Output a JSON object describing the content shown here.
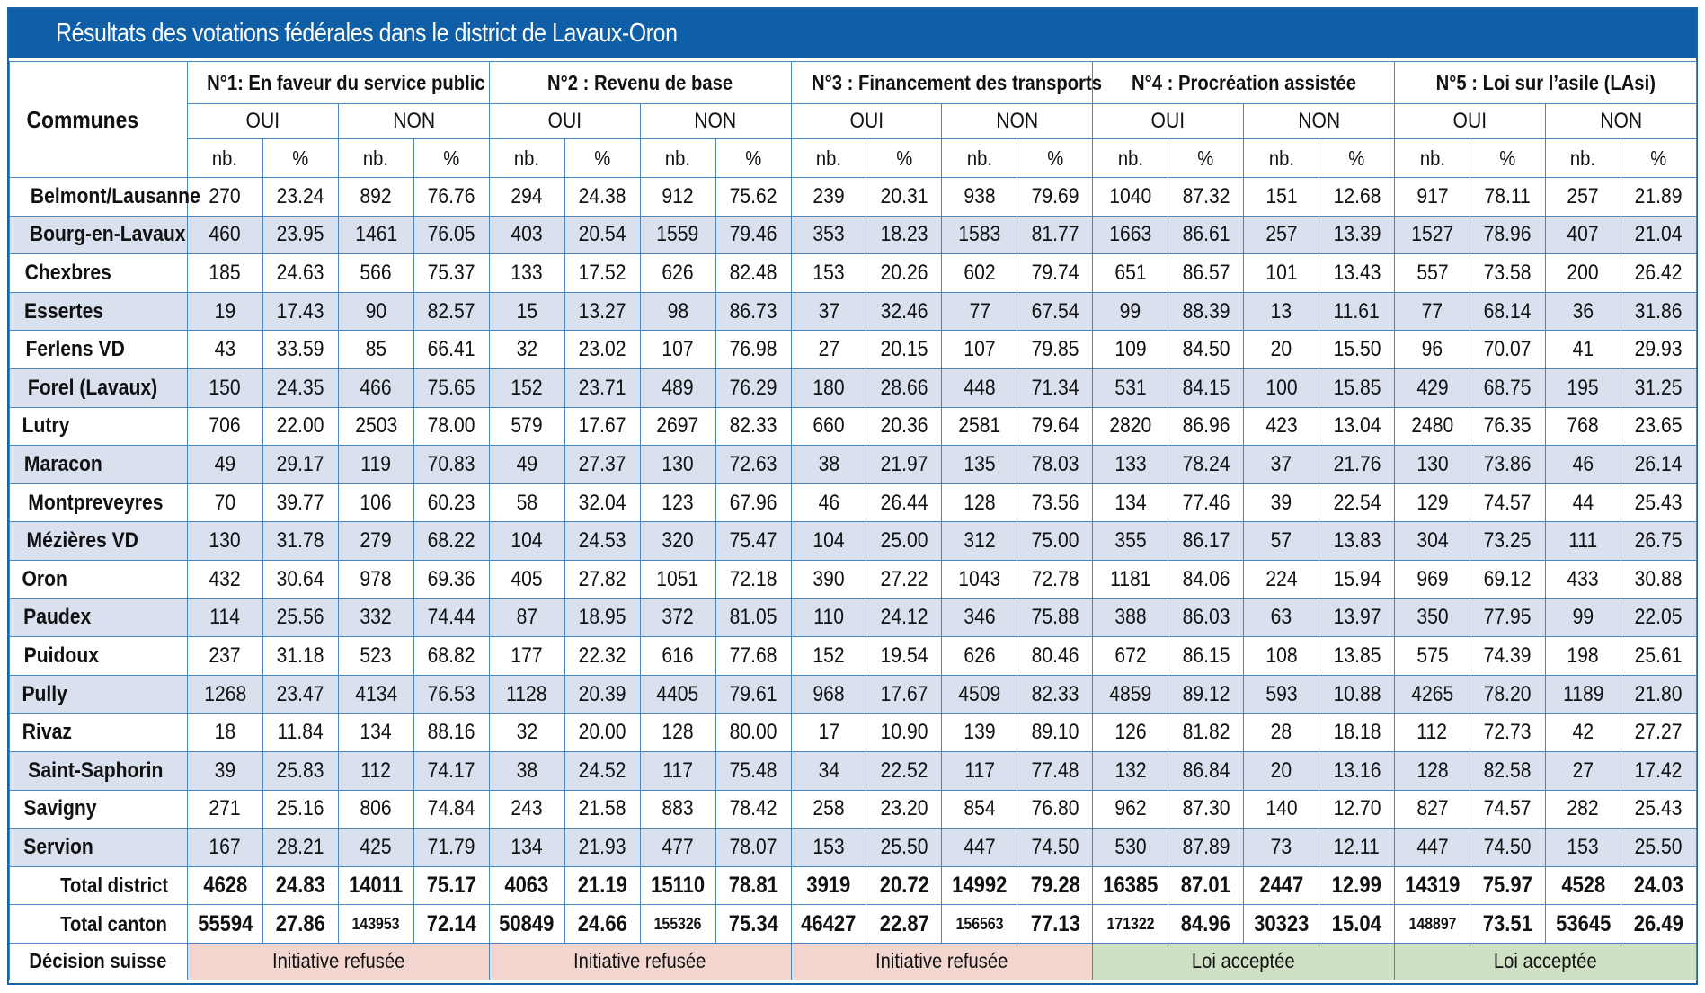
{
  "title": "Résultats des votations fédérales dans le district de Lavaux-Oron",
  "header": {
    "communes_label": "Communes",
    "votes": [
      "N°1: En faveur du service public",
      "N°2 : Revenu de base",
      "N°3 : Financement des transports",
      "N°4 : Procréation assistée",
      "N°5 : Loi sur l’asile (LAsi)"
    ],
    "oui_label": "OUI",
    "non_label": "NON",
    "nb_label": "nb.",
    "pct_label": "%"
  },
  "rows": [
    {
      "name": "Belmont/Lausanne",
      "v": [
        "270",
        "23.24",
        "892",
        "76.76",
        "294",
        "24.38",
        "912",
        "75.62",
        "239",
        "20.31",
        "938",
        "79.69",
        "1040",
        "87.32",
        "151",
        "12.68",
        "917",
        "78.11",
        "257",
        "21.89"
      ]
    },
    {
      "name": "Bourg-en-Lavaux",
      "v": [
        "460",
        "23.95",
        "1461",
        "76.05",
        "403",
        "20.54",
        "1559",
        "79.46",
        "353",
        "18.23",
        "1583",
        "81.77",
        "1663",
        "86.61",
        "257",
        "13.39",
        "1527",
        "78.96",
        "407",
        "21.04"
      ]
    },
    {
      "name": "Chexbres",
      "v": [
        "185",
        "24.63",
        "566",
        "75.37",
        "133",
        "17.52",
        "626",
        "82.48",
        "153",
        "20.26",
        "602",
        "79.74",
        "651",
        "86.57",
        "101",
        "13.43",
        "557",
        "73.58",
        "200",
        "26.42"
      ]
    },
    {
      "name": "Essertes",
      "v": [
        "19",
        "17.43",
        "90",
        "82.57",
        "15",
        "13.27",
        "98",
        "86.73",
        "37",
        "32.46",
        "77",
        "67.54",
        "99",
        "88.39",
        "13",
        "11.61",
        "77",
        "68.14",
        "36",
        "31.86"
      ]
    },
    {
      "name": "Ferlens VD",
      "v": [
        "43",
        "33.59",
        "85",
        "66.41",
        "32",
        "23.02",
        "107",
        "76.98",
        "27",
        "20.15",
        "107",
        "79.85",
        "109",
        "84.50",
        "20",
        "15.50",
        "96",
        "70.07",
        "41",
        "29.93"
      ]
    },
    {
      "name": "Forel (Lavaux)",
      "v": [
        "150",
        "24.35",
        "466",
        "75.65",
        "152",
        "23.71",
        "489",
        "76.29",
        "180",
        "28.66",
        "448",
        "71.34",
        "531",
        "84.15",
        "100",
        "15.85",
        "429",
        "68.75",
        "195",
        "31.25"
      ]
    },
    {
      "name": "Lutry",
      "v": [
        "706",
        "22.00",
        "2503",
        "78.00",
        "579",
        "17.67",
        "2697",
        "82.33",
        "660",
        "20.36",
        "2581",
        "79.64",
        "2820",
        "86.96",
        "423",
        "13.04",
        "2480",
        "76.35",
        "768",
        "23.65"
      ]
    },
    {
      "name": "Maracon",
      "v": [
        "49",
        "29.17",
        "119",
        "70.83",
        "49",
        "27.37",
        "130",
        "72.63",
        "38",
        "21.97",
        "135",
        "78.03",
        "133",
        "78.24",
        "37",
        "21.76",
        "130",
        "73.86",
        "46",
        "26.14"
      ]
    },
    {
      "name": "Montpreveyres",
      "v": [
        "70",
        "39.77",
        "106",
        "60.23",
        "58",
        "32.04",
        "123",
        "67.96",
        "46",
        "26.44",
        "128",
        "73.56",
        "134",
        "77.46",
        "39",
        "22.54",
        "129",
        "74.57",
        "44",
        "25.43"
      ]
    },
    {
      "name": "Mézières VD",
      "v": [
        "130",
        "31.78",
        "279",
        "68.22",
        "104",
        "24.53",
        "320",
        "75.47",
        "104",
        "25.00",
        "312",
        "75.00",
        "355",
        "86.17",
        "57",
        "13.83",
        "304",
        "73.25",
        "111",
        "26.75"
      ]
    },
    {
      "name": "Oron",
      "v": [
        "432",
        "30.64",
        "978",
        "69.36",
        "405",
        "27.82",
        "1051",
        "72.18",
        "390",
        "27.22",
        "1043",
        "72.78",
        "1181",
        "84.06",
        "224",
        "15.94",
        "969",
        "69.12",
        "433",
        "30.88"
      ]
    },
    {
      "name": "Paudex",
      "v": [
        "114",
        "25.56",
        "332",
        "74.44",
        "87",
        "18.95",
        "372",
        "81.05",
        "110",
        "24.12",
        "346",
        "75.88",
        "388",
        "86.03",
        "63",
        "13.97",
        "350",
        "77.95",
        "99",
        "22.05"
      ]
    },
    {
      "name": "Puidoux",
      "v": [
        "237",
        "31.18",
        "523",
        "68.82",
        "177",
        "22.32",
        "616",
        "77.68",
        "152",
        "19.54",
        "626",
        "80.46",
        "672",
        "86.15",
        "108",
        "13.85",
        "575",
        "74.39",
        "198",
        "25.61"
      ]
    },
    {
      "name": "Pully",
      "v": [
        "1268",
        "23.47",
        "4134",
        "76.53",
        "1128",
        "20.39",
        "4405",
        "79.61",
        "968",
        "17.67",
        "4509",
        "82.33",
        "4859",
        "89.12",
        "593",
        "10.88",
        "4265",
        "78.20",
        "1189",
        "21.80"
      ]
    },
    {
      "name": "Rivaz",
      "v": [
        "18",
        "11.84",
        "134",
        "88.16",
        "32",
        "20.00",
        "128",
        "80.00",
        "17",
        "10.90",
        "139",
        "89.10",
        "126",
        "81.82",
        "28",
        "18.18",
        "112",
        "72.73",
        "42",
        "27.27"
      ]
    },
    {
      "name": "Saint-Saphorin",
      "v": [
        "39",
        "25.83",
        "112",
        "74.17",
        "38",
        "24.52",
        "117",
        "75.48",
        "34",
        "22.52",
        "117",
        "77.48",
        "132",
        "86.84",
        "20",
        "13.16",
        "128",
        "82.58",
        "27",
        "17.42"
      ]
    },
    {
      "name": "Savigny",
      "v": [
        "271",
        "25.16",
        "806",
        "74.84",
        "243",
        "21.58",
        "883",
        "78.42",
        "258",
        "23.20",
        "854",
        "76.80",
        "962",
        "87.30",
        "140",
        "12.70",
        "827",
        "74.57",
        "282",
        "25.43"
      ]
    },
    {
      "name": "Servion",
      "v": [
        "167",
        "28.21",
        "425",
        "71.79",
        "134",
        "21.93",
        "477",
        "78.07",
        "153",
        "25.50",
        "447",
        "74.50",
        "530",
        "87.89",
        "73",
        "12.11",
        "447",
        "74.50",
        "153",
        "25.50"
      ]
    }
  ],
  "totals": [
    {
      "name": "Total district",
      "v": [
        "4628",
        "24.83",
        "14011",
        "75.17",
        "4063",
        "21.19",
        "15110",
        "78.81",
        "3919",
        "20.72",
        "14992",
        "79.28",
        "16385",
        "87.01",
        "2447",
        "12.99",
        "14319",
        "75.97",
        "4528",
        "24.03"
      ]
    },
    {
      "name": "Total canton",
      "v": [
        "55594",
        "27.86",
        "143953",
        "72.14",
        "50849",
        "24.66",
        "155326",
        "75.34",
        "46427",
        "22.87",
        "156563",
        "77.13",
        "171322",
        "84.96",
        "30323",
        "15.04",
        "148897",
        "73.51",
        "53645",
        "26.49"
      ]
    }
  ],
  "decision": {
    "label": "Décision suisse",
    "results": [
      {
        "text": "Initiative refusée",
        "status": "refused"
      },
      {
        "text": "Initiative refusée",
        "status": "refused"
      },
      {
        "text": "Initiative refusée",
        "status": "refused"
      },
      {
        "text": "Loi acceptée",
        "status": "accepted"
      },
      {
        "text": "Loi acceptée",
        "status": "accepted"
      }
    ]
  },
  "colors": {
    "title_bar": "#0e5ea8",
    "row_alt": "#d9e1ef",
    "refused": "#f3d6cf",
    "accepted": "#cfe1c4",
    "grid": "#4a86bf"
  }
}
